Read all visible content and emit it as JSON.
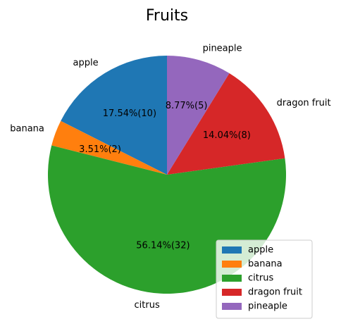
{
  "chart_data": {
    "type": "pie",
    "title": "Fruits",
    "categories": [
      "apple",
      "banana",
      "citrus",
      "dragon fruit",
      "pineaple"
    ],
    "values": [
      10,
      2,
      32,
      8,
      5
    ],
    "percent_labels": [
      "17.54%(10)",
      "3.51%(2)",
      "56.14%(32)",
      "14.04%(8)",
      "8.77%(5)"
    ],
    "colors": [
      "#1f77b4",
      "#ff7f0e",
      "#2ca02c",
      "#d62728",
      "#9467bd"
    ],
    "start_angle_deg": 90,
    "direction": "counterclockwise",
    "legend": {
      "placement": "lower-right",
      "entries": [
        "apple",
        "banana",
        "citrus",
        "dragon fruit",
        "pineaple"
      ]
    }
  }
}
